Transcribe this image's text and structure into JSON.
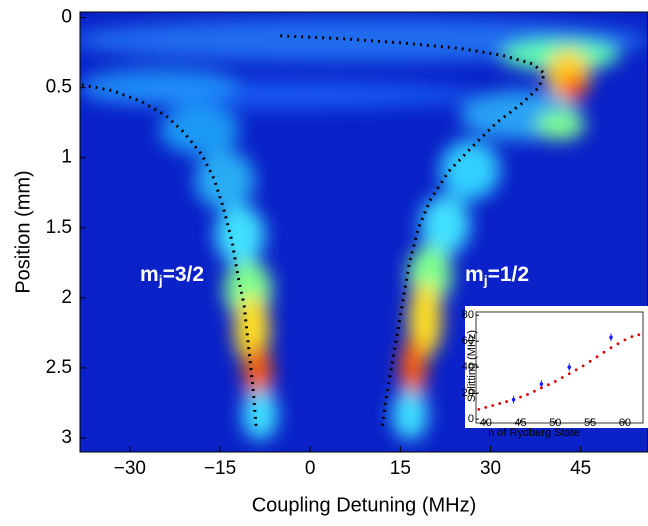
{
  "chart_data": {
    "type": "heatmap",
    "xlabel": "Coupling Detuning (MHz)",
    "ylabel": "Position (mm)",
    "xlim": [
      -38.3,
      56.2
    ],
    "ylim": [
      -0.04,
      3.1
    ],
    "y_inverted": true,
    "xticks": [
      {
        "value": -30,
        "label": "−30"
      },
      {
        "value": -15,
        "label": "−15"
      },
      0,
      15,
      30,
      45
    ],
    "yticks": [
      0,
      0.5,
      1,
      1.5,
      2,
      2.5,
      3
    ],
    "curve_color": "#000000",
    "curves": [
      {
        "x": [
          -38,
          -33,
          -28,
          -24,
          -21,
          -18,
          -16,
          -14.5,
          -13,
          -12,
          -11,
          -10.5,
          -10,
          -9.5,
          -9
        ],
        "y": [
          0.48,
          0.52,
          0.6,
          0.7,
          0.82,
          0.98,
          1.15,
          1.35,
          1.6,
          1.85,
          2.05,
          2.25,
          2.45,
          2.65,
          2.92
        ]
      },
      {
        "x": [
          -5,
          5,
          15,
          25,
          32,
          37,
          39,
          38,
          35,
          31,
          27,
          23,
          20,
          18,
          16.5,
          15.5,
          14.5,
          13.5,
          12.5,
          12
        ],
        "y": [
          0.13,
          0.15,
          0.18,
          0.22,
          0.27,
          0.33,
          0.4,
          0.5,
          0.62,
          0.75,
          0.92,
          1.1,
          1.3,
          1.5,
          1.75,
          2.0,
          2.25,
          2.5,
          2.75,
          2.92
        ]
      }
    ],
    "annotations": [
      {
        "label": "m",
        "subscript": "j",
        "suffix": "=3/2"
      },
      {
        "label": "m",
        "subscript": "j",
        "suffix": "=1/2"
      }
    ],
    "inset": {
      "type": "scatter",
      "xlabel": "n of Rydberg State",
      "ylabel": "Splitting (MHz)",
      "xlim": [
        38.6,
        62.6
      ],
      "ylim": [
        -3,
        82.5
      ],
      "xticks": [
        40,
        45,
        50,
        55,
        60
      ],
      "yticks": [
        0,
        20,
        40,
        60,
        80
      ],
      "points": {
        "color": "#1a1aff",
        "x": [
          44,
          48,
          52,
          58
        ],
        "y": [
          15,
          27,
          40,
          63
        ],
        "err": [
          3,
          3,
          3,
          3
        ]
      },
      "fit": {
        "color": "#e00000",
        "x": [
          38,
          39,
          40,
          41,
          42,
          43,
          44,
          45,
          46,
          47,
          48,
          49,
          50,
          51,
          52,
          53,
          54,
          55,
          56,
          57,
          58,
          59,
          60,
          61,
          62
        ],
        "y": [
          6,
          7.5,
          9,
          10.5,
          12,
          13.5,
          15,
          17,
          19,
          21.5,
          24,
          26.5,
          29,
          32,
          35,
          38,
          41,
          44.5,
          48,
          51.5,
          55,
          58,
          61,
          63.5,
          65
        ]
      }
    }
  }
}
